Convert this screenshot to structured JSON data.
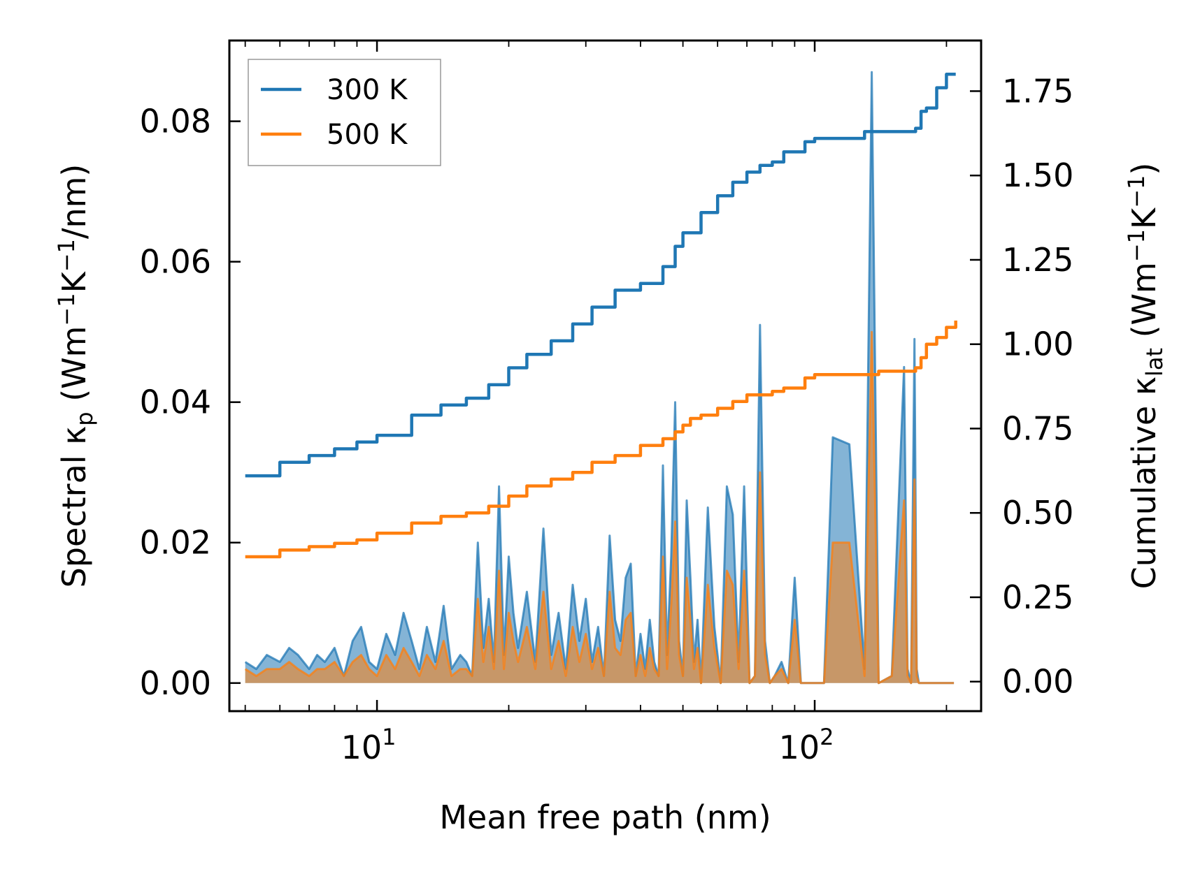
{
  "chart_data": {
    "type": "line",
    "xlabel": "Mean free path (nm)",
    "ylabel_left": {
      "main": "Spectral κ",
      "sub": "p",
      "unit_open": " (Wm",
      "sup1": "−1",
      "mid": "K",
      "sup2": "−1",
      "unit_close": "/nm)"
    },
    "ylabel_right": {
      "main": "Cumulative κ",
      "sub": "lat",
      "unit_open": " (Wm",
      "sup1": "−1",
      "mid": "K",
      "sup2": "−1",
      "unit_close": ")"
    },
    "xscale": "log",
    "xlim": [
      4.6,
      240
    ],
    "ylim_left": [
      -0.004,
      0.0915
    ],
    "ylim_right": [
      -0.0875,
      1.9
    ],
    "xticks": [
      {
        "base": "10",
        "exp": "1",
        "value": 10
      },
      {
        "base": "10",
        "exp": "2",
        "value": 100
      }
    ],
    "yticks_left": [
      {
        "label": "0.00",
        "value": 0
      },
      {
        "label": "0.02",
        "value": 0.02
      },
      {
        "label": "0.04",
        "value": 0.04
      },
      {
        "label": "0.06",
        "value": 0.06
      },
      {
        "label": "0.08",
        "value": 0.08
      }
    ],
    "yticks_right": [
      {
        "label": "0.00",
        "value": 0
      },
      {
        "label": "0.25",
        "value": 0.25
      },
      {
        "label": "0.50",
        "value": 0.5
      },
      {
        "label": "0.75",
        "value": 0.75
      },
      {
        "label": "1.00",
        "value": 1.0
      },
      {
        "label": "1.25",
        "value": 1.25
      },
      {
        "label": "1.50",
        "value": 1.5
      },
      {
        "label": "1.75",
        "value": 1.75
      }
    ],
    "legend": {
      "position": "upper-left",
      "entries": [
        {
          "label": "300 K",
          "color": "#1f77b4"
        },
        {
          "label": "500 K",
          "color": "#ff7f0e"
        }
      ]
    },
    "cumulative": [
      {
        "name": "300 K",
        "color": "#1f77b4",
        "axis": "right",
        "x": [
          5,
          6,
          7,
          8,
          9,
          10,
          12,
          14,
          16,
          18,
          20,
          22,
          25,
          28,
          31,
          35,
          40,
          45,
          48,
          50,
          52,
          55,
          60,
          65,
          70,
          75,
          80,
          85,
          90,
          95,
          100,
          110,
          120,
          130,
          140,
          150,
          160,
          165,
          170,
          175,
          180,
          190,
          200,
          210
        ],
        "y": [
          0.61,
          0.65,
          0.67,
          0.69,
          0.71,
          0.73,
          0.79,
          0.82,
          0.84,
          0.88,
          0.93,
          0.97,
          1.01,
          1.06,
          1.11,
          1.16,
          1.18,
          1.23,
          1.29,
          1.33,
          1.33,
          1.39,
          1.44,
          1.48,
          1.51,
          1.53,
          1.54,
          1.57,
          1.57,
          1.6,
          1.61,
          1.61,
          1.61,
          1.63,
          1.63,
          1.63,
          1.63,
          1.63,
          1.64,
          1.69,
          1.7,
          1.76,
          1.8,
          1.8
        ]
      },
      {
        "name": "500 K",
        "color": "#ff7f0e",
        "axis": "right",
        "x": [
          5,
          6,
          7,
          8,
          9,
          10,
          12,
          14,
          16,
          18,
          20,
          22,
          25,
          28,
          31,
          35,
          40,
          45,
          48,
          50,
          52,
          55,
          60,
          65,
          70,
          75,
          80,
          85,
          90,
          95,
          100,
          110,
          120,
          130,
          140,
          150,
          160,
          165,
          170,
          175,
          180,
          190,
          200,
          210
        ],
        "y": [
          0.37,
          0.39,
          0.4,
          0.41,
          0.42,
          0.44,
          0.47,
          0.49,
          0.5,
          0.52,
          0.55,
          0.58,
          0.6,
          0.62,
          0.65,
          0.67,
          0.7,
          0.72,
          0.74,
          0.76,
          0.78,
          0.79,
          0.81,
          0.83,
          0.85,
          0.85,
          0.86,
          0.87,
          0.87,
          0.9,
          0.91,
          0.91,
          0.91,
          0.91,
          0.92,
          0.92,
          0.92,
          0.92,
          0.93,
          0.96,
          1.0,
          1.02,
          1.05,
          1.07
        ]
      }
    ],
    "spectral": [
      {
        "name": "300 K",
        "color": "#1f77b4",
        "axis": "left",
        "x": [
          5,
          5.3,
          5.6,
          6,
          6.3,
          6.6,
          7,
          7.3,
          7.6,
          8,
          8.4,
          8.8,
          9.2,
          9.6,
          10,
          10.5,
          11,
          11.5,
          12,
          12.5,
          13,
          13.6,
          14.2,
          14.8,
          15.5,
          16,
          16.5,
          17,
          17.5,
          18,
          18.5,
          19,
          19.5,
          20,
          20.5,
          21,
          22,
          23,
          24,
          25,
          26,
          27,
          28,
          29,
          30,
          31,
          32,
          33,
          34,
          35,
          36,
          37,
          38,
          39,
          40,
          41,
          42,
          43,
          44,
          45,
          46,
          47,
          48,
          49,
          50,
          51,
          52,
          53,
          54,
          55,
          57,
          59,
          61,
          63,
          65,
          67,
          69,
          71,
          73,
          75,
          77,
          79,
          81,
          84,
          87,
          90,
          93,
          96,
          100,
          105,
          110,
          120,
          130,
          135,
          140,
          150,
          160,
          163,
          166,
          169,
          171,
          173,
          175,
          178,
          181,
          185,
          188,
          192,
          196,
          200,
          204,
          208
        ],
        "y": [
          0.003,
          0.002,
          0.004,
          0.003,
          0.005,
          0.004,
          0.002,
          0.004,
          0.003,
          0.005,
          0.001,
          0.006,
          0.008,
          0.003,
          0.002,
          0.007,
          0.004,
          0.01,
          0.006,
          0.002,
          0.008,
          0.003,
          0.011,
          0.002,
          0.004,
          0.003,
          0.001,
          0.02,
          0.005,
          0.012,
          0.003,
          0.028,
          0.004,
          0.018,
          0.01,
          0.005,
          0.013,
          0.003,
          0.022,
          0.004,
          0.01,
          0.002,
          0.014,
          0.006,
          0.012,
          0.003,
          0.008,
          0.001,
          0.021,
          0.009,
          0.006,
          0.015,
          0.017,
          0.001,
          0.007,
          0.002,
          0.009,
          0.003,
          0.001,
          0.031,
          0.004,
          0.018,
          0.04,
          0.006,
          0.001,
          0.026,
          0.015,
          0.003,
          0.009,
          0.0,
          0.025,
          0.008,
          0.0,
          0.028,
          0.024,
          0.003,
          0.028,
          0.0,
          0.001,
          0.051,
          0.006,
          0.0,
          0.001,
          0.003,
          0.0,
          0.015,
          0.0,
          0.0,
          0.0,
          0.0,
          0.035,
          0.034,
          0.002,
          0.087,
          0.0,
          0.001,
          0.045,
          0.002,
          0.0,
          0.049,
          0.002,
          0.0,
          0.0,
          0.0,
          0.0,
          0.0,
          0.0,
          0.0,
          0.0,
          0.0,
          0.0,
          0.0
        ]
      },
      {
        "name": "500 K",
        "color": "#ff7f0e",
        "axis": "left",
        "x": [
          5,
          5.3,
          5.6,
          6,
          6.3,
          6.6,
          7,
          7.3,
          7.6,
          8,
          8.4,
          8.8,
          9.2,
          9.6,
          10,
          10.5,
          11,
          11.5,
          12,
          12.5,
          13,
          13.6,
          14.2,
          14.8,
          15.5,
          16,
          16.5,
          17,
          17.5,
          18,
          18.5,
          19,
          19.5,
          20,
          20.5,
          21,
          22,
          23,
          24,
          25,
          26,
          27,
          28,
          29,
          30,
          31,
          32,
          33,
          34,
          35,
          36,
          37,
          38,
          39,
          40,
          41,
          42,
          43,
          44,
          45,
          46,
          47,
          48,
          49,
          50,
          51,
          52,
          53,
          54,
          55,
          57,
          59,
          61,
          63,
          65,
          67,
          69,
          71,
          73,
          75,
          77,
          79,
          81,
          84,
          87,
          90,
          93,
          96,
          100,
          105,
          110,
          120,
          130,
          135,
          140,
          150,
          160,
          163,
          166,
          169,
          171,
          173,
          175,
          178,
          181,
          185,
          188,
          192,
          196,
          200,
          204,
          208
        ],
        "y": [
          0.002,
          0.001,
          0.002,
          0.002,
          0.003,
          0.002,
          0.001,
          0.002,
          0.002,
          0.003,
          0.001,
          0.003,
          0.004,
          0.002,
          0.001,
          0.004,
          0.002,
          0.005,
          0.003,
          0.001,
          0.004,
          0.002,
          0.006,
          0.001,
          0.002,
          0.002,
          0.001,
          0.012,
          0.003,
          0.008,
          0.002,
          0.016,
          0.002,
          0.01,
          0.006,
          0.003,
          0.008,
          0.002,
          0.013,
          0.002,
          0.006,
          0.001,
          0.008,
          0.003,
          0.007,
          0.002,
          0.005,
          0.001,
          0.013,
          0.005,
          0.004,
          0.009,
          0.01,
          0.001,
          0.004,
          0.001,
          0.005,
          0.002,
          0.001,
          0.018,
          0.002,
          0.011,
          0.023,
          0.004,
          0.001,
          0.015,
          0.009,
          0.002,
          0.005,
          0.0,
          0.014,
          0.005,
          0.0,
          0.016,
          0.014,
          0.002,
          0.016,
          0.0,
          0.001,
          0.03,
          0.004,
          0.0,
          0.001,
          0.002,
          0.0,
          0.009,
          0.0,
          0.0,
          0.0,
          0.0,
          0.02,
          0.02,
          0.001,
          0.05,
          0.0,
          0.001,
          0.026,
          0.001,
          0.0,
          0.029,
          0.001,
          0.0,
          0.0,
          0.0,
          0.0,
          0.0,
          0.0,
          0.0,
          0.0,
          0.0,
          0.0,
          0.0
        ]
      }
    ]
  }
}
